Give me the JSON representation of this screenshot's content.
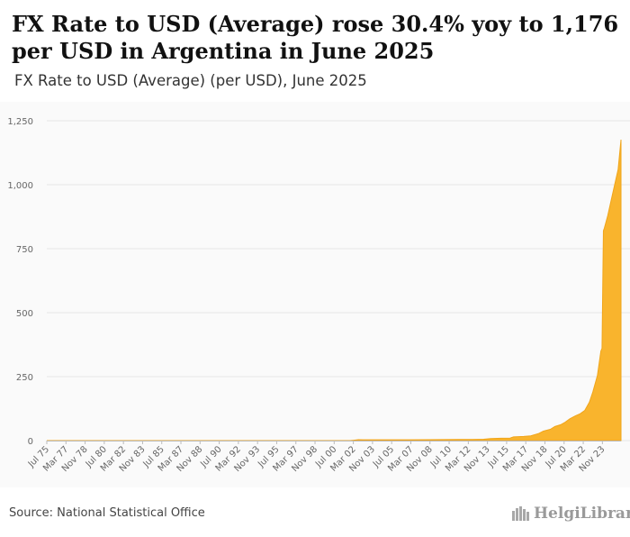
{
  "header": {
    "title": "FX Rate to USD (Average) rose 30.4% yoy to 1,176 per USD in Argentina in June 2025",
    "subtitle": "FX Rate to USD (Average) (per USD), June 2025"
  },
  "footer": {
    "source": "Source: National Statistical Office",
    "logo_text": "HelgiLibrary"
  },
  "colors": {
    "fill": "#f9b42d",
    "stroke": "#f0a51b",
    "grid": "#e6e6e6",
    "axis_text": "#666666"
  },
  "chart_data": {
    "type": "area",
    "title": "FX Rate to USD (Average) rose 30.4% yoy to 1,176 per USD in Argentina in June 2025",
    "subtitle": "FX Rate to USD (Average) (per USD), June 2025",
    "xlabel": "",
    "ylabel": "per USD",
    "ylim": [
      0,
      1250
    ],
    "yticks": [
      0,
      250,
      500,
      750,
      1000,
      1250
    ],
    "ytick_labels": [
      "0",
      "250",
      "500",
      "750",
      "1,000",
      "1,250"
    ],
    "xlim": [
      "Jul 75",
      "Jun 25"
    ],
    "xtick_labels": [
      "Jul 75",
      "Mar 77",
      "Nov 78",
      "Jul 80",
      "Mar 82",
      "Nov 83",
      "Jul 85",
      "Mar 87",
      "Nov 88",
      "Jul 90",
      "Mar 92",
      "Nov 93",
      "Jul 95",
      "Mar 97",
      "Nov 98",
      "Jul 00",
      "Mar 02",
      "Nov 03",
      "Jul 05",
      "Mar 07",
      "Nov 08",
      "Jul 10",
      "Mar 12",
      "Nov 13",
      "Jul 15",
      "Mar 17",
      "Nov 18",
      "Jul 20",
      "Mar 22",
      "Nov 23"
    ],
    "series": [
      {
        "name": "FX Rate to USD (Average)",
        "x": [
          1975.5,
          2001.9,
          2002.2,
          2002.6,
          2003.0,
          2005.0,
          2007.0,
          2008.8,
          2010.0,
          2011.5,
          2012.5,
          2013.5,
          2014.1,
          2015.0,
          2015.8,
          2016.1,
          2017.0,
          2017.6,
          2018.3,
          2018.7,
          2019.3,
          2019.7,
          2020.2,
          2020.6,
          2021.0,
          2021.5,
          2021.9,
          2022.3,
          2022.7,
          2023.0,
          2023.4,
          2023.7,
          2023.8,
          2023.92,
          2024.0,
          2024.3,
          2024.6,
          2024.9,
          2025.2,
          2025.45
        ],
        "values": [
          0,
          0,
          1.5,
          3.3,
          2.9,
          2.9,
          3.1,
          3.4,
          3.9,
          4.3,
          4.6,
          5.5,
          8.0,
          9.2,
          9.7,
          14.5,
          16.3,
          18.5,
          28,
          37,
          44,
          55,
          62,
          72,
          85,
          97,
          105,
          118,
          150,
          190,
          255,
          350,
          360,
          820,
          830,
          880,
          940,
          1000,
          1060,
          1176
        ]
      }
    ]
  }
}
